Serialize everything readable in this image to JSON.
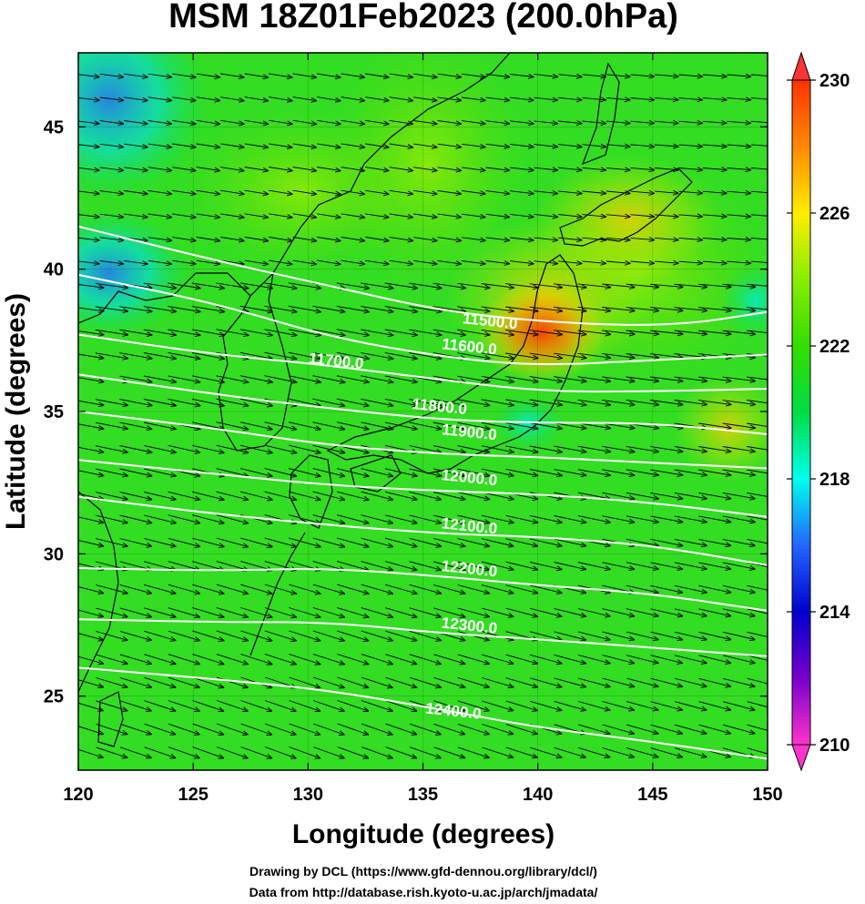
{
  "title": "MSM 18Z01Feb2023 (200.0hPa)",
  "xlabel": "Longitude (degrees)",
  "ylabel": "Latitude  (degrees)",
  "credits": [
    "Drawing by DCL (https://www.gfd-dennou.org/library/dcl/)",
    "Data from http://database.rish.kyoto-u.ac.jp/arch/jmadata/"
  ],
  "map": {
    "lon_range": [
      120,
      150
    ],
    "lat_range": [
      22.4,
      47.6
    ],
    "x_ticks": [
      120,
      125,
      130,
      135,
      140,
      145,
      150
    ],
    "y_ticks": [
      25,
      30,
      35,
      40,
      45
    ],
    "x_tick_labels": [
      "120",
      "125",
      "130",
      "135",
      "140",
      "145",
      "150"
    ],
    "y_tick_labels": [
      "25",
      "30",
      "35",
      "40",
      "45"
    ],
    "wind_vectors": "arrows throughout, predominantly westerly, stronger and turning ESE south of 40N"
  },
  "colorbar": {
    "min": 210,
    "max": 230,
    "ticks": [
      210,
      214,
      218,
      222,
      226,
      230
    ],
    "tick_labels": [
      "210",
      "214",
      "218",
      "222",
      "226",
      "230"
    ],
    "colors": [
      "#ff33cc",
      "#7700cc",
      "#0000cc",
      "#2266ff",
      "#00ffee",
      "#00dd44",
      "#33dd00",
      "#88ee00",
      "#ffee00",
      "#ff8800",
      "#ff3300"
    ]
  },
  "contours": [
    {
      "label": "11500.0",
      "value": 11500,
      "pts": [
        [
          120,
          41.5
        ],
        [
          126,
          40.3
        ],
        [
          131,
          39.4
        ],
        [
          136,
          38.5
        ],
        [
          141,
          38.1
        ],
        [
          146,
          38.0
        ],
        [
          150,
          38.5
        ]
      ],
      "label_at": [
        137.9,
        38.0
      ]
    },
    {
      "label": "11600.0",
      "value": 11600,
      "pts": [
        [
          120,
          39.8
        ],
        [
          126,
          38.8
        ],
        [
          131,
          37.6
        ],
        [
          136,
          36.9
        ],
        [
          140,
          36.6
        ],
        [
          145,
          36.8
        ],
        [
          150,
          37.0
        ]
      ],
      "label_at": [
        137.0,
        37.1
      ]
    },
    {
      "label": "11700.0",
      "value": 11700,
      "pts": [
        [
          120,
          37.7
        ],
        [
          126,
          37.0
        ],
        [
          130,
          36.7
        ],
        [
          134,
          36.3
        ],
        [
          140,
          35.7
        ],
        [
          145,
          35.7
        ],
        [
          150,
          35.8
        ]
      ],
      "label_at": [
        131.2,
        36.6
      ]
    },
    {
      "label": "11800.0",
      "value": 11800,
      "pts": [
        [
          120,
          36.3
        ],
        [
          126,
          35.6
        ],
        [
          131,
          35.1
        ],
        [
          136,
          34.7
        ],
        [
          140,
          34.6
        ],
        [
          145,
          34.6
        ],
        [
          150,
          34.2
        ]
      ],
      "label_at": [
        135.7,
        35.0
      ]
    },
    {
      "label": "11900.0",
      "value": 11900,
      "pts": [
        [
          120,
          35.0
        ],
        [
          126,
          34.4
        ],
        [
          131,
          33.8
        ],
        [
          136,
          33.5
        ],
        [
          140,
          33.4
        ],
        [
          145,
          33.2
        ],
        [
          150,
          33.0
        ]
      ],
      "label_at": [
        137.0,
        34.1
      ]
    },
    {
      "label": "12000.0",
      "value": 12000,
      "pts": [
        [
          120,
          33.3
        ],
        [
          126,
          32.8
        ],
        [
          131,
          32.4
        ],
        [
          136,
          32.2
        ],
        [
          140,
          32.1
        ],
        [
          145,
          31.8
        ],
        [
          150,
          31.3
        ]
      ],
      "label_at": [
        137.0,
        32.5
      ]
    },
    {
      "label": "12100.0",
      "value": 12100,
      "pts": [
        [
          120,
          32.0
        ],
        [
          126,
          31.4
        ],
        [
          131,
          31.0
        ],
        [
          136,
          30.7
        ],
        [
          140,
          30.6
        ],
        [
          145,
          30.3
        ],
        [
          150,
          29.6
        ]
      ],
      "label_at": [
        137.0,
        30.8
      ]
    },
    {
      "label": "12200.0",
      "value": 12200,
      "pts": [
        [
          120,
          29.5
        ],
        [
          126,
          29.4
        ],
        [
          131,
          29.5
        ],
        [
          136,
          29.2
        ],
        [
          140,
          28.9
        ],
        [
          145,
          28.6
        ],
        [
          150,
          28.0
        ]
      ],
      "label_at": [
        137.0,
        29.3
      ]
    },
    {
      "label": "12300.0",
      "value": 12300,
      "pts": [
        [
          120,
          27.7
        ],
        [
          126,
          27.6
        ],
        [
          131,
          27.6
        ],
        [
          136,
          27.2
        ],
        [
          140,
          27.0
        ],
        [
          145,
          26.7
        ],
        [
          150,
          26.4
        ]
      ],
      "label_at": [
        137.0,
        27.3
      ]
    },
    {
      "label": "12400.0",
      "value": 12400,
      "pts": [
        [
          120,
          26.0
        ],
        [
          126,
          25.6
        ],
        [
          131,
          25.2
        ],
        [
          136,
          24.5
        ],
        [
          140,
          23.9
        ],
        [
          145,
          23.4
        ],
        [
          150,
          22.8
        ]
      ],
      "label_at": [
        136.3,
        24.3
      ]
    }
  ]
}
